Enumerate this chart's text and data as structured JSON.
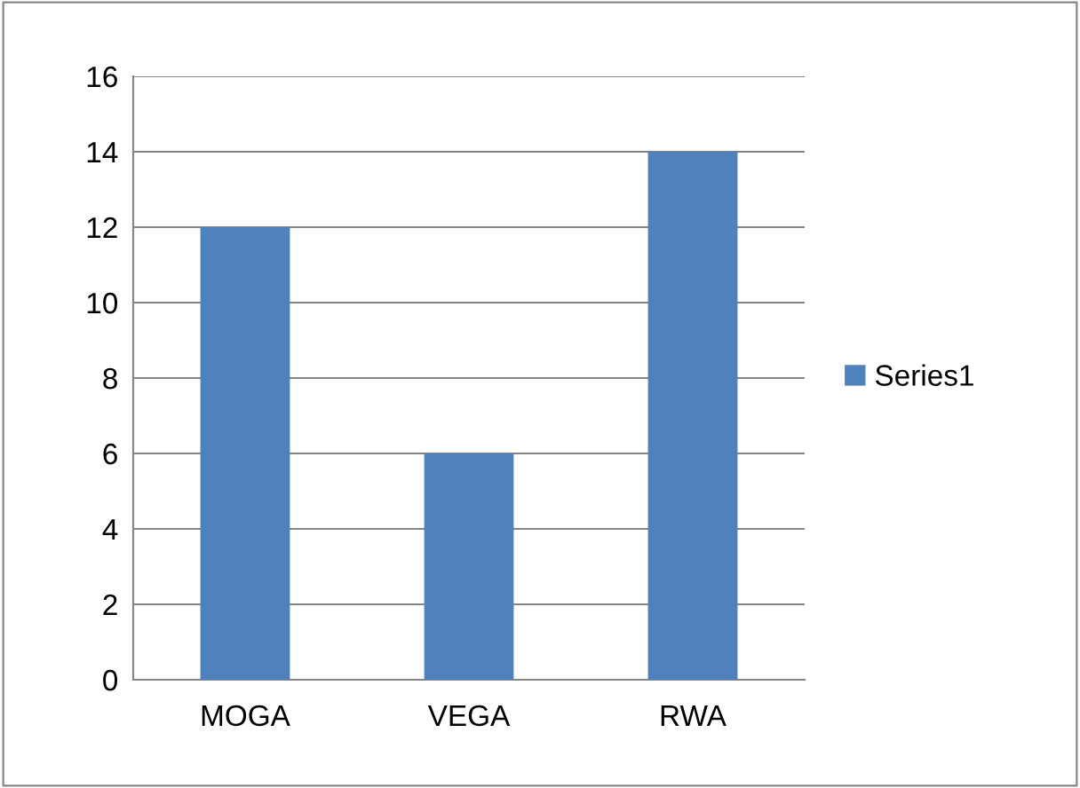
{
  "chart_data": {
    "type": "bar",
    "categories": [
      "MOGA",
      "VEGA",
      "RWA"
    ],
    "series": [
      {
        "name": "Series1",
        "color": "#4f81bd",
        "values": [
          12,
          6,
          14
        ]
      }
    ],
    "ylim": [
      0,
      16
    ],
    "yticks": [
      0,
      2,
      4,
      6,
      8,
      10,
      12,
      14,
      16
    ],
    "grid": "y",
    "legend": "right"
  }
}
